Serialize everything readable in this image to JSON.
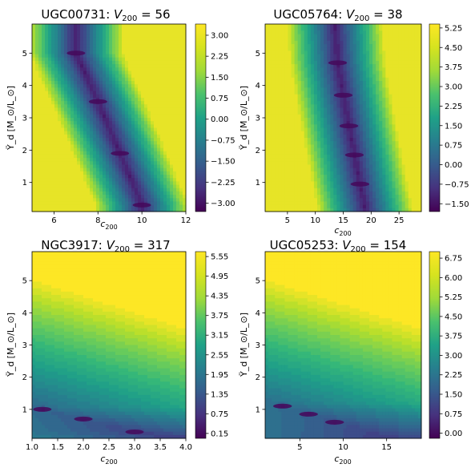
{
  "chart_data": [
    {
      "type": "heatmap",
      "title_prefix": "UGC00731: ",
      "title_math": "V",
      "title_sub": "200",
      "title_value": " = 56",
      "xlabel_main": "c",
      "xlabel_sub": "200",
      "ylabel": "Ϋ_d [M_⊙/L_⊙]",
      "xlim": [
        5,
        12
      ],
      "ylim": [
        0.1,
        5.9
      ],
      "xticks": [
        "6",
        "8",
        "10",
        "12"
      ],
      "xtick_values": [
        6,
        8,
        10,
        12
      ],
      "yticks": [
        "1",
        "2",
        "3",
        "4",
        "5"
      ],
      "ytick_values": [
        1,
        2,
        3,
        4,
        5
      ],
      "colorbar_ticks": [
        "3.00",
        "2.25",
        "1.50",
        "0.75",
        "0.00",
        "−0.75",
        "−1.50",
        "−2.25",
        "−3.00"
      ],
      "colorbar_values": [
        3.0,
        2.25,
        1.5,
        0.75,
        0.0,
        -0.75,
        -1.5,
        -2.25,
        -3.0
      ],
      "crange": [
        -3.3,
        3.4
      ],
      "valley": [
        [
          7.0,
          5.9
        ],
        [
          7.0,
          5.0
        ],
        [
          8.0,
          3.5
        ],
        [
          9.0,
          1.9
        ],
        [
          10.0,
          0.3
        ]
      ],
      "minima": [
        [
          7.0,
          5.0
        ],
        [
          8.0,
          3.5
        ],
        [
          9.0,
          1.9
        ],
        [
          10.0,
          0.3
        ]
      ]
    },
    {
      "type": "heatmap",
      "title_prefix": "UGC05764: ",
      "title_math": "V",
      "title_sub": "200",
      "title_value": " = 38",
      "xlabel_main": "c",
      "xlabel_sub": "200",
      "ylabel": "Ϋ_d [M_⊙/L_⊙]",
      "xlim": [
        1,
        29
      ],
      "ylim": [
        0.1,
        5.9
      ],
      "xticks": [
        "5",
        "10",
        "15",
        "20",
        "25"
      ],
      "xtick_values": [
        5,
        10,
        15,
        20,
        25
      ],
      "yticks": [
        "1",
        "2",
        "3",
        "4",
        "5"
      ],
      "ytick_values": [
        1,
        2,
        3,
        4,
        5
      ],
      "colorbar_ticks": [
        "5.25",
        "4.50",
        "3.75",
        "3.00",
        "2.25",
        "1.50",
        "0.75",
        "0.00",
        "−0.75",
        "−1.50"
      ],
      "colorbar_values": [
        5.25,
        4.5,
        3.75,
        3.0,
        2.25,
        1.5,
        0.75,
        0.0,
        -0.75,
        -1.5
      ],
      "crange": [
        -1.8,
        5.4
      ],
      "valley": [
        [
          13.5,
          5.9
        ],
        [
          14.0,
          4.7
        ],
        [
          15.0,
          3.7
        ],
        [
          16.0,
          2.75
        ],
        [
          17.0,
          1.85
        ],
        [
          18.0,
          0.95
        ],
        [
          19.0,
          0.1
        ]
      ],
      "minima": [
        [
          14.0,
          4.7
        ],
        [
          15.0,
          3.7
        ],
        [
          16.0,
          2.75
        ],
        [
          17.0,
          1.85
        ],
        [
          18.0,
          0.95
        ]
      ]
    },
    {
      "type": "heatmap",
      "title_prefix": "NGC3917: ",
      "title_math": "V",
      "title_sub": "200",
      "title_value": " = 317",
      "xlabel_main": "c",
      "xlabel_sub": "200",
      "ylabel": "Ϋ_d [M_⊙/L_⊙]",
      "xlim": [
        1.0,
        4.0
      ],
      "ylim": [
        0.1,
        5.9
      ],
      "xticks": [
        "1.0",
        "1.5",
        "2.0",
        "2.5",
        "3.0",
        "3.5",
        "4.0"
      ],
      "xtick_values": [
        1.0,
        1.5,
        2.0,
        2.5,
        3.0,
        3.5,
        4.0
      ],
      "yticks": [
        "1",
        "2",
        "3",
        "4",
        "5"
      ],
      "ytick_values": [
        1,
        2,
        3,
        4,
        5
      ],
      "colorbar_ticks": [
        "5.55",
        "4.95",
        "4.35",
        "3.75",
        "3.15",
        "2.55",
        "1.95",
        "1.35",
        "0.75",
        "0.15"
      ],
      "colorbar_values": [
        5.55,
        4.95,
        4.35,
        3.75,
        3.15,
        2.55,
        1.95,
        1.35,
        0.75,
        0.15
      ],
      "crange": [
        0.0,
        5.7
      ],
      "valley": [
        [
          1.0,
          1.05
        ],
        [
          2.0,
          0.7
        ],
        [
          3.0,
          0.3
        ],
        [
          4.0,
          0.1
        ]
      ],
      "minima": [
        [
          1.2,
          1.0
        ],
        [
          2.0,
          0.7
        ],
        [
          3.0,
          0.3
        ]
      ]
    },
    {
      "type": "heatmap",
      "title_prefix": "UGC05253: ",
      "title_math": "V",
      "title_sub": "200",
      "title_value": " = 154",
      "xlabel_main": "c",
      "xlabel_sub": "200",
      "ylabel": "Ϋ_d [M_⊙/L_⊙]",
      "xlim": [
        1,
        19
      ],
      "ylim": [
        0.1,
        5.9
      ],
      "xticks": [
        "5",
        "10",
        "15"
      ],
      "xtick_values": [
        5,
        10,
        15
      ],
      "yticks": [
        "1",
        "2",
        "3",
        "4",
        "5"
      ],
      "ytick_values": [
        1,
        2,
        3,
        4,
        5
      ],
      "colorbar_ticks": [
        "6.75",
        "6.00",
        "5.25",
        "4.50",
        "3.75",
        "3.00",
        "2.25",
        "1.50",
        "0.75",
        "0.00"
      ],
      "colorbar_values": [
        6.75,
        6.0,
        5.25,
        4.5,
        3.75,
        3.0,
        2.25,
        1.5,
        0.75,
        0.0
      ],
      "crange": [
        -0.2,
        7.0
      ],
      "valley": [
        [
          1.0,
          1.2
        ],
        [
          5.0,
          0.95
        ],
        [
          10.0,
          0.55
        ],
        [
          15.0,
          0.1
        ]
      ],
      "minima": [
        [
          3.0,
          1.1
        ],
        [
          6.0,
          0.85
        ],
        [
          9.0,
          0.6
        ]
      ]
    }
  ]
}
